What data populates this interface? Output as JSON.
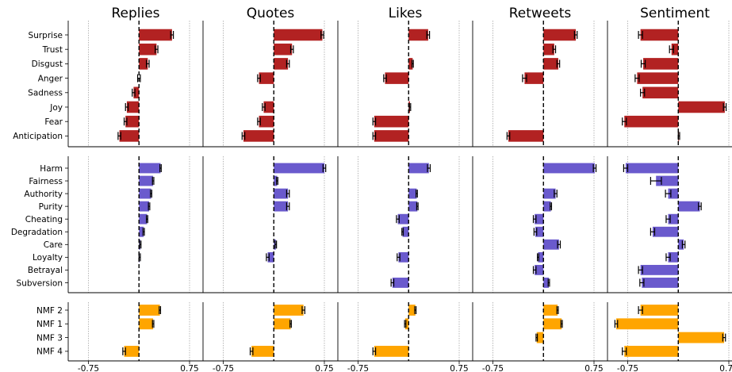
{
  "chart_data": {
    "type": "bar",
    "orientation": "horizontal",
    "columns": [
      "Replies",
      "Quotes",
      "Likes",
      "Retweets",
      "Sentiment"
    ],
    "xlim": [
      -1.05,
      0.95
    ],
    "xticks": [
      -0.75,
      0.75
    ],
    "xtick_labels": [
      "-0.75",
      "0.75"
    ],
    "reference_lines": {
      "dashed_at": 0,
      "dotted_at": [
        -0.75,
        0.75
      ]
    },
    "colors": {
      "emotions": "#b22222",
      "morals": "#6a5acd",
      "nmf": "#ffa500"
    },
    "groups": [
      {
        "name": "emotions",
        "labels": [
          "Surprise",
          "Trust",
          "Disgust",
          "Anger",
          "Sadness",
          "Joy",
          "Fear",
          "Anticipation"
        ],
        "series": [
          {
            "column": "Replies",
            "values": [
              0.49,
              0.26,
              0.13,
              0.0,
              -0.08,
              -0.18,
              -0.2,
              -0.29
            ],
            "errors": [
              0.02,
              0.02,
              0.02,
              0.02,
              0.02,
              0.02,
              0.02,
              0.02
            ]
          },
          {
            "column": "Quotes",
            "values": [
              0.72,
              0.27,
              0.21,
              -0.22,
              0.0,
              -0.15,
              -0.22,
              -0.45
            ],
            "errors": [
              0.02,
              0.02,
              0.02,
              0.02,
              0.0,
              0.02,
              0.02,
              0.02
            ]
          },
          {
            "column": "Likes",
            "values": [
              0.29,
              0.0,
              0.06,
              -0.35,
              0.0,
              0.02,
              -0.51,
              -0.51
            ],
            "errors": [
              0.02,
              0.0,
              0.01,
              0.02,
              0.0,
              0.01,
              0.02,
              0.02
            ]
          },
          {
            "column": "Retweets",
            "values": [
              0.48,
              0.16,
              0.22,
              -0.28,
              0.0,
              0.0,
              0.0,
              -0.52
            ],
            "errors": [
              0.02,
              0.02,
              0.02,
              0.03,
              0.0,
              0.0,
              0.0,
              0.02
            ]
          },
          {
            "column": "Sentiment",
            "values": [
              -0.56,
              -0.1,
              -0.52,
              -0.61,
              -0.53,
              0.69,
              -0.8,
              0.01
            ],
            "errors": [
              0.03,
              0.03,
              0.03,
              0.03,
              0.03,
              0.02,
              0.03,
              0.01
            ]
          }
        ]
      },
      {
        "name": "morals",
        "labels": [
          "Harm",
          "Fairness",
          "Authority",
          "Purity",
          "Cheating",
          "Degradation",
          "Care",
          "Loyalty",
          "Betrayal",
          "Subversion"
        ],
        "series": [
          {
            "column": "Replies",
            "values": [
              0.32,
              0.21,
              0.18,
              0.15,
              0.12,
              0.07,
              0.02,
              0.01,
              0.0,
              0.0
            ],
            "errors": [
              0.01,
              0.01,
              0.01,
              0.01,
              0.01,
              0.01,
              0.01,
              0.01,
              0.0,
              0.0
            ]
          },
          {
            "column": "Quotes",
            "values": [
              0.75,
              0.05,
              0.21,
              0.21,
              0.0,
              0.0,
              0.03,
              -0.09,
              0.0,
              0.0
            ],
            "errors": [
              0.02,
              0.01,
              0.02,
              0.02,
              0.0,
              0.0,
              0.01,
              0.02,
              0.0,
              0.0
            ]
          },
          {
            "column": "Likes",
            "values": [
              0.3,
              0.0,
              0.12,
              0.13,
              -0.16,
              -0.09,
              0.0,
              -0.15,
              0.0,
              -0.24
            ],
            "errors": [
              0.02,
              0.0,
              0.01,
              0.01,
              0.02,
              0.01,
              0.0,
              0.02,
              0.0,
              0.02
            ]
          },
          {
            "column": "Retweets",
            "values": [
              0.76,
              0.0,
              0.18,
              0.11,
              -0.13,
              -0.12,
              0.23,
              -0.08,
              -0.13,
              0.08
            ],
            "errors": [
              0.02,
              0.0,
              0.02,
              0.01,
              0.02,
              0.02,
              0.02,
              0.01,
              0.02,
              0.01
            ]
          },
          {
            "column": "Sentiment",
            "values": [
              -0.78,
              -0.33,
              -0.15,
              0.32,
              -0.15,
              -0.38,
              0.08,
              -0.15,
              -0.56,
              -0.54
            ],
            "errors": [
              0.03,
              0.08,
              0.04,
              0.02,
              0.03,
              0.03,
              0.02,
              0.03,
              0.03,
              0.03
            ]
          }
        ]
      },
      {
        "name": "nmf",
        "labels": [
          "NMF 2",
          "NMF 1",
          "NMF 3",
          "NMF 4"
        ],
        "series": [
          {
            "column": "Replies",
            "values": [
              0.31,
              0.21,
              0.0,
              -0.22
            ],
            "errors": [
              0.01,
              0.01,
              0.0,
              0.02
            ]
          },
          {
            "column": "Quotes",
            "values": [
              0.44,
              0.25,
              0.0,
              -0.33
            ],
            "errors": [
              0.02,
              0.01,
              0.0,
              0.02
            ]
          },
          {
            "column": "Likes",
            "values": [
              0.1,
              -0.05,
              0.0,
              -0.51
            ],
            "errors": [
              0.01,
              0.01,
              0.0,
              0.02
            ]
          },
          {
            "column": "Retweets",
            "values": [
              0.21,
              0.27,
              -0.1,
              0.0
            ],
            "errors": [
              0.01,
              0.01,
              0.01,
              0.0
            ]
          },
          {
            "column": "Sentiment",
            "values": [
              -0.56,
              -0.92,
              0.68,
              -0.8
            ],
            "errors": [
              0.03,
              0.02,
              0.02,
              0.03
            ]
          }
        ]
      }
    ]
  }
}
